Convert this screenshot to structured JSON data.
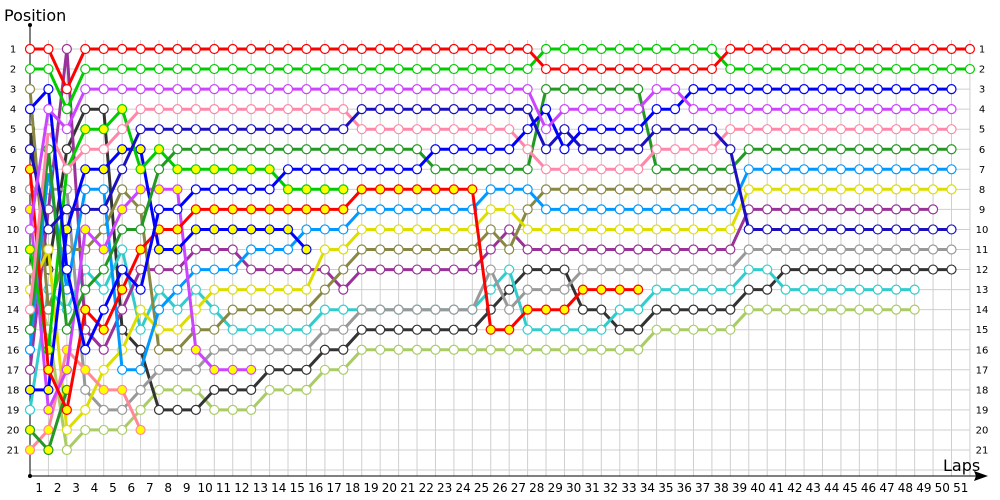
{
  "chart_data": {
    "type": "line",
    "ylabel": "Position",
    "xlabel": "Laps",
    "x_tick_labels": [
      "1",
      "2",
      "3",
      "4",
      "5",
      "6",
      "7",
      "8",
      "9",
      "10",
      "11",
      "12",
      "13",
      "14",
      "15",
      "16",
      "17",
      "18",
      "19",
      "20",
      "21",
      "22",
      "23",
      "24",
      "25",
      "26",
      "27",
      "28",
      "29",
      "30",
      "31",
      "32",
      "33",
      "34",
      "35",
      "36",
      "37",
      "38",
      "39",
      "40",
      "41",
      "42",
      "43",
      "44",
      "45",
      "46",
      "47",
      "48",
      "49",
      "50",
      "51"
    ],
    "y_tick_labels": [
      "1",
      "2",
      "3",
      "4",
      "5",
      "6",
      "7",
      "8",
      "9",
      "10",
      "11",
      "12",
      "13",
      "14",
      "15",
      "16",
      "17",
      "18",
      "19",
      "20",
      "21"
    ],
    "ylim": [
      1,
      21
    ],
    "y_inverted": true,
    "grid": true,
    "x_points": "start plus laps 1-51",
    "series": [
      {
        "color": "#aacc66",
        "fill": "#ffffff",
        "values": [
          12,
          15,
          21,
          20,
          20,
          20,
          19,
          18,
          18,
          18,
          19,
          19,
          19,
          18,
          18,
          18,
          17,
          17,
          16,
          16,
          16,
          16,
          16,
          16,
          16,
          16,
          16,
          16,
          16,
          16,
          16,
          16,
          16,
          16,
          15,
          15,
          15,
          15,
          15,
          14,
          14,
          14,
          14,
          14,
          14,
          14,
          14,
          14,
          14,
          null,
          null,
          null
        ]
      },
      {
        "color": "#333333",
        "fill": "#ffffff",
        "values": [
          5,
          12,
          6,
          4,
          4,
          15,
          16,
          19,
          19,
          19,
          18,
          18,
          18,
          17,
          17,
          17,
          16,
          16,
          15,
          15,
          15,
          15,
          15,
          15,
          15,
          14,
          13,
          12,
          12,
          12,
          14,
          14,
          15,
          15,
          14,
          14,
          14,
          14,
          14,
          13,
          13,
          12,
          12,
          12,
          12,
          12,
          12,
          12,
          12,
          12,
          12,
          null
        ]
      },
      {
        "color": "#33cccc",
        "fill": "#ffffff",
        "values": [
          19,
          13,
          14,
          12,
          13,
          11,
          15,
          13,
          14,
          13,
          14,
          15,
          15,
          15,
          15,
          15,
          14,
          14,
          14,
          14,
          14,
          14,
          14,
          14,
          14,
          13,
          12,
          15,
          15,
          15,
          15,
          15,
          14,
          14,
          13,
          13,
          13,
          13,
          13,
          12,
          12,
          13,
          13,
          13,
          13,
          13,
          13,
          13,
          13,
          null,
          null,
          null
        ]
      },
      {
        "color": "#999999",
        "fill": "#ffffff",
        "values": [
          8,
          8,
          8,
          18,
          19,
          19,
          18,
          17,
          17,
          17,
          16,
          16,
          16,
          16,
          16,
          16,
          15,
          15,
          14,
          14,
          14,
          14,
          14,
          14,
          14,
          12,
          14,
          13,
          13,
          13,
          12,
          12,
          12,
          12,
          12,
          12,
          12,
          12,
          12,
          11,
          11,
          11,
          11,
          11,
          11,
          11,
          11,
          11,
          11,
          11,
          11,
          null
        ]
      },
      {
        "color": "#993399",
        "fill": "#ffffff",
        "values": [
          17,
          9,
          1,
          15,
          16,
          14,
          12,
          12,
          12,
          11,
          11,
          11,
          12,
          12,
          12,
          12,
          12,
          13,
          12,
          12,
          12,
          12,
          12,
          12,
          12,
          11,
          10,
          11,
          11,
          11,
          11,
          11,
          11,
          11,
          11,
          11,
          11,
          11,
          11,
          9,
          9,
          9,
          9,
          9,
          9,
          9,
          9,
          9,
          9,
          9,
          null,
          null
        ]
      },
      {
        "color": "#888844",
        "fill": "#ffffff",
        "values": [
          3,
          14,
          11,
          11,
          10,
          8,
          9,
          16,
          16,
          15,
          15,
          14,
          14,
          14,
          14,
          14,
          13,
          12,
          11,
          11,
          11,
          11,
          11,
          11,
          11,
          10,
          11,
          9,
          8,
          8,
          8,
          8,
          8,
          8,
          8,
          8,
          8,
          8,
          8,
          null,
          null,
          null,
          null,
          null,
          null,
          null,
          null,
          null,
          null,
          null,
          null,
          null
        ]
      },
      {
        "color": "#dddd00",
        "fill": "#ffffff",
        "values": [
          13,
          11,
          20,
          19,
          17,
          16,
          14,
          15,
          15,
          14,
          13,
          13,
          13,
          13,
          13,
          13,
          11,
          11,
          10,
          10,
          10,
          10,
          10,
          10,
          10,
          9,
          9,
          10,
          10,
          10,
          10,
          10,
          10,
          10,
          10,
          10,
          10,
          10,
          10,
          8,
          8,
          8,
          8,
          8,
          8,
          8,
          8,
          8,
          8,
          8,
          8,
          null
        ]
      },
      {
        "color": "#0099ff",
        "fill": "#ffffff",
        "values": [
          16,
          7,
          13,
          8,
          8,
          17,
          17,
          14,
          13,
          12,
          12,
          12,
          11,
          11,
          11,
          10,
          10,
          10,
          9,
          9,
          9,
          9,
          9,
          9,
          9,
          8,
          8,
          8,
          9,
          9,
          9,
          9,
          9,
          9,
          9,
          9,
          9,
          9,
          9,
          7,
          7,
          7,
          7,
          7,
          7,
          7,
          7,
          7,
          7,
          7,
          7,
          null
        ]
      },
      {
        "color": "#ff8899",
        "fill": "#ffff00",
        "values": [
          21,
          20,
          16,
          17,
          18,
          18,
          20,
          null,
          null,
          null,
          null,
          null,
          null,
          null,
          null,
          null,
          null,
          null,
          null,
          null,
          null,
          null,
          null,
          null,
          null,
          null,
          null,
          null,
          null,
          null,
          null,
          null,
          null,
          null,
          null,
          null,
          null,
          null,
          null,
          null,
          null,
          null,
          null,
          null,
          null,
          null,
          null,
          null,
          null,
          null,
          null,
          null
        ]
      },
      {
        "color": "#229922",
        "fill": "#ffff00",
        "values": [
          20,
          21,
          18,
          null,
          null,
          null,
          null,
          null,
          null,
          null,
          null,
          null,
          null,
          null,
          null,
          null,
          null,
          null,
          null,
          null,
          null,
          null,
          null,
          null,
          null,
          null,
          null,
          null,
          null,
          null,
          null,
          null,
          null,
          null,
          null,
          null,
          null,
          null,
          null,
          null,
          null,
          null,
          null,
          null,
          null,
          null,
          null,
          null,
          null,
          null,
          null,
          null
        ]
      },
      {
        "color": "#cc44ff",
        "fill": "#ffff00",
        "values": [
          9,
          19,
          17,
          10,
          11,
          9,
          8,
          8,
          8,
          16,
          17,
          17,
          17,
          null,
          null,
          null,
          null,
          null,
          null,
          null,
          null,
          null,
          null,
          null,
          null,
          null,
          null,
          null,
          null,
          null,
          null,
          null,
          null,
          null,
          null,
          null,
          null,
          null,
          null,
          null,
          null,
          null,
          null,
          null,
          null,
          null,
          null,
          null,
          null,
          null,
          null,
          null
        ]
      },
      {
        "color": "#0000ff",
        "fill": "#ffff00",
        "values": [
          18,
          18,
          10,
          7,
          7,
          6,
          6,
          11,
          11,
          10,
          10,
          10,
          10,
          10,
          10,
          11,
          null,
          null,
          null,
          null,
          null,
          null,
          null,
          null,
          null,
          null,
          null,
          null,
          null,
          null,
          null,
          null,
          null,
          null,
          null,
          null,
          null,
          null,
          null,
          null,
          null,
          null,
          null,
          null,
          null,
          null,
          null,
          null,
          null,
          null,
          null,
          null
        ]
      },
      {
        "color": "#00cc00",
        "fill": "#ffff00",
        "values": [
          11,
          16,
          7,
          5,
          5,
          4,
          7,
          6,
          7,
          7,
          7,
          7,
          7,
          7,
          8,
          8,
          8,
          8,
          null,
          null,
          null,
          null,
          null,
          null,
          null,
          null,
          null,
          null,
          null,
          null,
          null,
          null,
          null,
          null,
          null,
          null,
          null,
          null,
          null,
          null,
          null,
          null,
          null,
          null,
          null,
          null,
          null,
          null,
          null,
          null,
          null,
          null
        ]
      },
      {
        "color": "#ff0000",
        "fill": "#ffff00",
        "values": [
          7,
          17,
          19,
          14,
          15,
          13,
          11,
          10,
          10,
          9,
          9,
          9,
          9,
          9,
          9,
          9,
          9,
          9,
          8,
          8,
          8,
          8,
          8,
          8,
          8,
          15,
          15,
          14,
          14,
          14,
          13,
          13,
          13,
          13,
          null,
          null,
          null,
          null,
          null,
          null,
          null,
          null,
          null,
          null,
          null,
          null,
          null,
          null,
          null,
          null,
          null,
          null
        ]
      },
      {
        "color": "#229922",
        "fill": "#ffffff",
        "values": [
          15,
          6,
          15,
          13,
          12,
          10,
          10,
          7,
          6,
          6,
          6,
          6,
          6,
          6,
          6,
          6,
          6,
          6,
          6,
          6,
          6,
          6,
          7,
          7,
          7,
          7,
          7,
          7,
          3,
          3,
          3,
          3,
          3,
          3,
          7,
          7,
          7,
          7,
          7,
          6,
          6,
          6,
          6,
          6,
          6,
          6,
          6,
          6,
          6,
          6,
          6,
          null
        ]
      },
      {
        "color": "#ff88aa",
        "fill": "#ffffff",
        "values": [
          14,
          5,
          7,
          6,
          6,
          5,
          4,
          4,
          4,
          4,
          4,
          4,
          4,
          4,
          4,
          4,
          4,
          4,
          5,
          5,
          5,
          5,
          5,
          5,
          5,
          5,
          5,
          6,
          7,
          7,
          7,
          7,
          7,
          7,
          6,
          6,
          6,
          6,
          5,
          5,
          5,
          5,
          5,
          5,
          5,
          5,
          5,
          5,
          5,
          5,
          5,
          null
        ]
      },
      {
        "color": "#1a10c0",
        "fill": "#ffffff",
        "values": [
          6,
          10,
          9,
          9,
          9,
          7,
          5,
          5,
          5,
          5,
          5,
          5,
          5,
          5,
          5,
          5,
          5,
          5,
          4,
          4,
          4,
          4,
          4,
          4,
          4,
          4,
          4,
          4,
          6,
          5,
          6,
          6,
          6,
          6,
          5,
          5,
          5,
          5,
          6,
          10,
          10,
          10,
          10,
          10,
          10,
          10,
          10,
          10,
          10,
          10,
          10,
          null
        ]
      },
      {
        "color": "#0000ff",
        "fill": "#ffffff",
        "values": [
          4,
          3,
          12,
          16,
          14,
          12,
          13,
          9,
          9,
          8,
          8,
          8,
          8,
          8,
          7,
          7,
          7,
          7,
          7,
          7,
          7,
          7,
          6,
          6,
          6,
          6,
          6,
          5,
          4,
          6,
          5,
          5,
          5,
          5,
          4,
          4,
          3,
          3,
          3,
          3,
          3,
          3,
          3,
          3,
          3,
          3,
          3,
          3,
          3,
          3,
          3,
          null
        ]
      },
      {
        "color": "#cc44ff",
        "fill": "#ffffff",
        "values": [
          10,
          4,
          5,
          3,
          3,
          3,
          3,
          3,
          3,
          3,
          3,
          3,
          3,
          3,
          3,
          3,
          3,
          3,
          3,
          3,
          3,
          3,
          3,
          3,
          3,
          3,
          3,
          3,
          5,
          4,
          4,
          4,
          4,
          4,
          3,
          3,
          4,
          4,
          4,
          4,
          4,
          4,
          4,
          4,
          4,
          4,
          4,
          4,
          4,
          4,
          4,
          null
        ]
      },
      {
        "color": "#00cc00",
        "fill": "#ffffff",
        "values": [
          2,
          2,
          4,
          2,
          2,
          2,
          2,
          2,
          2,
          2,
          2,
          2,
          2,
          2,
          2,
          2,
          2,
          2,
          2,
          2,
          2,
          2,
          2,
          2,
          2,
          2,
          2,
          2,
          1,
          1,
          1,
          1,
          1,
          1,
          1,
          1,
          1,
          1,
          2,
          2,
          2,
          2,
          2,
          2,
          2,
          2,
          2,
          2,
          2,
          2,
          2,
          2
        ]
      },
      {
        "color": "#ff0000",
        "fill": "#ffffff",
        "values": [
          1,
          1,
          3,
          1,
          1,
          1,
          1,
          1,
          1,
          1,
          1,
          1,
          1,
          1,
          1,
          1,
          1,
          1,
          1,
          1,
          1,
          1,
          1,
          1,
          1,
          1,
          1,
          1,
          2,
          2,
          2,
          2,
          2,
          2,
          2,
          2,
          2,
          2,
          1,
          1,
          1,
          1,
          1,
          1,
          1,
          1,
          1,
          1,
          1,
          1,
          1,
          1
        ]
      }
    ]
  }
}
